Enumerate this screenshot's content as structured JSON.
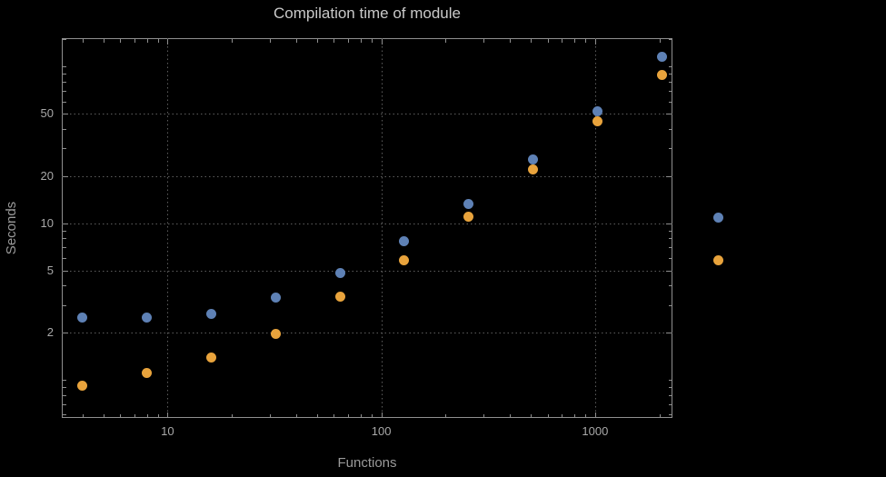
{
  "chart_data": {
    "type": "scatter",
    "title": "Compilation time of module",
    "xlabel": "Functions",
    "ylabel": "Seconds",
    "x_scale": "log",
    "y_scale": "log",
    "xlim": [
      3.2,
      2300
    ],
    "ylim": [
      0.57,
      152
    ],
    "grid": {
      "on": true,
      "style": "dotted",
      "color": "#5e5e5e",
      "x_values": [
        10,
        100,
        1000
      ],
      "y_values": [
        2,
        5,
        10,
        20,
        50
      ]
    },
    "x_ticks": [
      {
        "value": 10,
        "label": "10"
      },
      {
        "value": 100,
        "label": "100"
      },
      {
        "value": 1000,
        "label": "1000"
      }
    ],
    "y_ticks": [
      {
        "value": 2,
        "label": "2"
      },
      {
        "value": 5,
        "label": "5"
      },
      {
        "value": 10,
        "label": "10"
      },
      {
        "value": 20,
        "label": "20"
      },
      {
        "value": 50,
        "label": "50"
      }
    ],
    "x_minor_ticks": [
      4,
      5,
      6,
      7,
      8,
      9,
      20,
      30,
      40,
      50,
      60,
      70,
      80,
      90,
      200,
      300,
      400,
      500,
      600,
      700,
      800,
      900,
      2000
    ],
    "y_minor_ticks": [
      0.6,
      0.7,
      0.8,
      0.9,
      1,
      3,
      4,
      6,
      7,
      8,
      9,
      30,
      40,
      60,
      70,
      80,
      90,
      100,
      150
    ],
    "x": [
      4,
      8,
      16,
      32,
      64,
      128,
      256,
      512,
      1024,
      2048
    ],
    "series": [
      {
        "name": "series-1",
        "color": "#5E81B5",
        "values": [
          2.5,
          2.5,
          2.65,
          3.35,
          4.8,
          7.7,
          13.2,
          25.5,
          52,
          115
        ]
      },
      {
        "name": "series-2",
        "color": "#E8A33C",
        "values": [
          0.92,
          1.1,
          1.38,
          1.96,
          3.4,
          5.8,
          11,
          22,
          45,
          88
        ]
      }
    ],
    "legend": {
      "position": "right-outside",
      "labels_visible": false,
      "entries": [
        {
          "label": "",
          "color": "#5E81B5"
        },
        {
          "label": "",
          "color": "#E8A33C"
        }
      ]
    }
  },
  "colors": {
    "background": "#000000",
    "frame": "#8f8f8f",
    "grid": "#5e5e5e",
    "title": "#c9c9c9",
    "axis_label": "#9a9a9a",
    "tick_label": "#a8a8a8",
    "series1": "#5E81B5",
    "series2": "#E8A33C"
  }
}
